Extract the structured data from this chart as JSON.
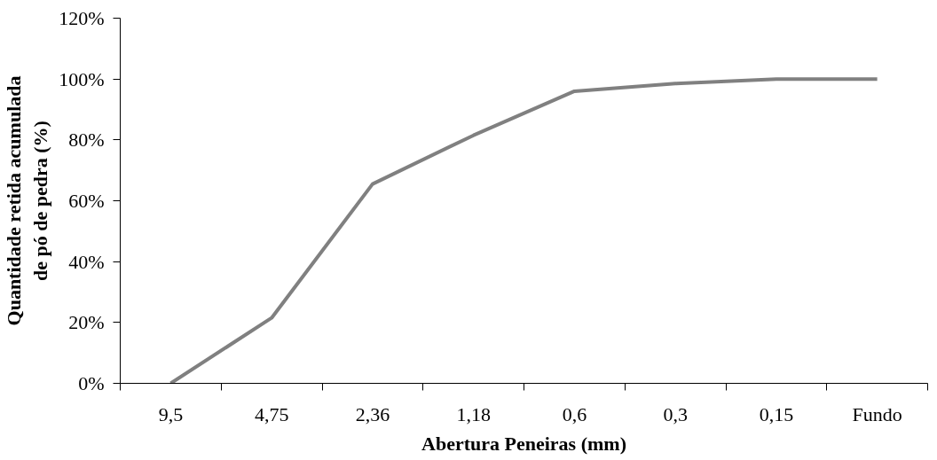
{
  "chart_data": {
    "type": "line",
    "xlabel": "Abertura Peneiras (mm)",
    "ylabel": "Quantidade retida acumulada de pó de pedra (%)",
    "categories": [
      "9,5",
      "4,75",
      "2,36",
      "1,18",
      "0,6",
      "0,3",
      "0,15",
      "Fundo"
    ],
    "series": [
      {
        "color": "#808080",
        "values": [
          0,
          21.5,
          65.5,
          81.5,
          96,
          98.5,
          100,
          100
        ]
      }
    ],
    "ylim": [
      0,
      120
    ],
    "yticks": [
      {
        "value": 0,
        "label": "0%"
      },
      {
        "value": 20,
        "label": "20%"
      },
      {
        "value": 40,
        "label": "40%"
      },
      {
        "value": 60,
        "label": "60%"
      },
      {
        "value": 80,
        "label": "80%"
      },
      {
        "value": 100,
        "label": "100%"
      },
      {
        "value": 120,
        "label": "120%"
      }
    ],
    "grid": false,
    "marker": "none",
    "line_style": "solid"
  }
}
